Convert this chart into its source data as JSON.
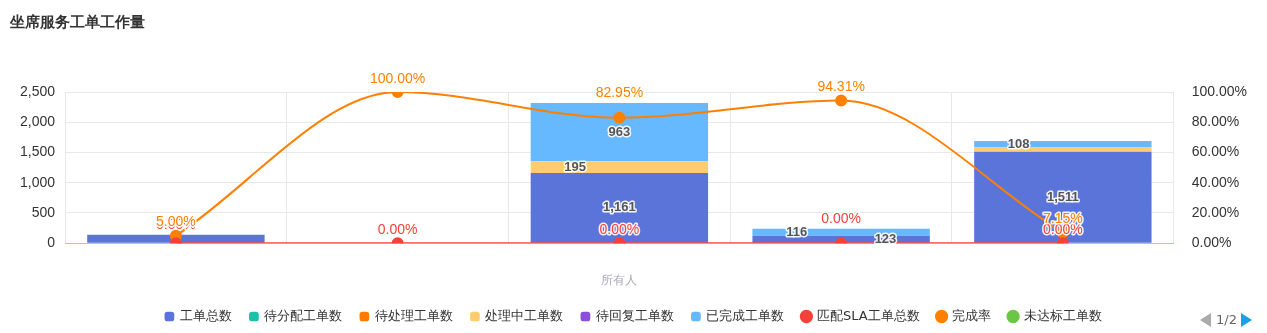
{
  "chart_data": {
    "type": "bar",
    "title": "坐席服务工单工作量",
    "xlabel": "所有人",
    "annotations": [
      "1/2"
    ],
    "categories": [
      null,
      null,
      null,
      null,
      null
    ],
    "stacked": true,
    "grid": true,
    "legend": "bottom",
    "ylim": [
      0,
      2500
    ],
    "yticks": [
      0,
      500,
      {
        "value": 1000,
        "label": "1,000"
      },
      {
        "value": 1500,
        "label": "1,500"
      },
      {
        "value": 2000,
        "label": "2,000"
      },
      {
        "value": 2500,
        "label": "2,500"
      }
    ],
    "y2lim": [
      0,
      100
    ],
    "y2ticks": [
      {
        "value": 0,
        "label": "0.00%"
      },
      {
        "value": 20,
        "label": "20.00%"
      },
      {
        "value": 40,
        "label": "40.00%"
      },
      {
        "value": 60,
        "label": "60.00%"
      },
      {
        "value": 80,
        "label": "80.00%"
      },
      {
        "value": 100,
        "label": "100.00%"
      }
    ],
    "series": [
      {
        "name": "工单总数",
        "color": "#5b74d9",
        "values": [
          140,
          0,
          1161,
          123,
          1511
        ],
        "value_labels": [
          null,
          null,
          "1,161",
          "123",
          "1,511"
        ]
      },
      {
        "name": "待分配工单数",
        "color": "#1cbfa8",
        "values": [
          0,
          0,
          0,
          0,
          0
        ]
      },
      {
        "name": "待处理工单数",
        "color": "#ff7a00",
        "values": [
          0,
          0,
          0,
          0,
          0
        ]
      },
      {
        "name": "处理中工单数",
        "color": "#ffcc70",
        "values": [
          0,
          0,
          195,
          0,
          70
        ],
        "value_labels": [
          null,
          null,
          "195",
          null,
          null
        ]
      },
      {
        "name": "待回复工单数",
        "color": "#8b4fd8",
        "values": [
          0,
          0,
          0,
          0,
          0
        ]
      },
      {
        "name": "已完成工单数",
        "color": "#66b8ff",
        "values": [
          null,
          0,
          963,
          116,
          108
        ],
        "value_labels": [
          null,
          null,
          "963",
          "116",
          "108"
        ]
      },
      {
        "name": "匹配SLA工单总数",
        "type": "line",
        "axis": "y2",
        "marker": "circle",
        "color": "#f5413a",
        "values": [
          0,
          0,
          0,
          0,
          0
        ],
        "value_labels": [
          "0.00%",
          "0.00%",
          "0.00%",
          "0.00%",
          "0.00%"
        ]
      },
      {
        "name": "完成率",
        "type": "line",
        "axis": "y2",
        "marker": "circle",
        "color": "#ff8000",
        "values": [
          5,
          100,
          82.95,
          94.31,
          7.15
        ],
        "value_labels": [
          "5.00%",
          "100.00%",
          "82.95%",
          "94.31%",
          "7.15%"
        ]
      },
      {
        "name": "未达标工单数",
        "type": "line",
        "axis": "y2",
        "marker": "circle",
        "color": "#6cc644",
        "values": [
          null,
          null,
          null,
          null,
          null
        ]
      }
    ]
  }
}
